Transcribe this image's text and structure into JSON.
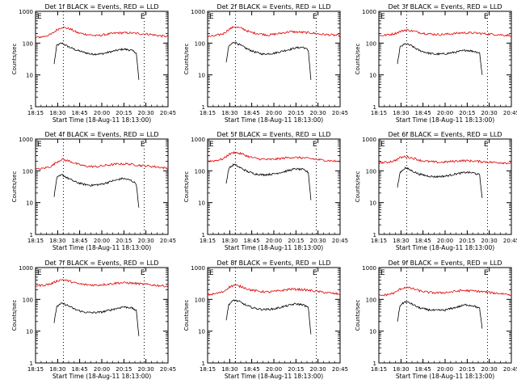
{
  "figure": {
    "ylabel": "Counts/sec",
    "xlabel": "Start Time (18-Aug-11 18:13:00)",
    "xticks": [
      "18:15",
      "18:30",
      "18:45",
      "20:00",
      "20:15",
      "20:30",
      "20:45"
    ],
    "yticks": [
      "1",
      "10",
      "100",
      "1000"
    ],
    "e_marker": "E",
    "colors": {
      "events": "#000000",
      "lld": "#e00000",
      "axes": "#000000"
    }
  },
  "chart_data": [
    {
      "type": "line",
      "title": "Det 1f BLACK = Events, RED = LLD",
      "xlabel": "Start Time (18-Aug-11 18:13:00)",
      "ylabel": "Counts/sec",
      "ylim": [
        1,
        1000
      ],
      "yscale": "log",
      "series": [
        {
          "name": "Events",
          "x": [
            0.14,
            0.16,
            0.2,
            0.24,
            0.3,
            0.36,
            0.42,
            0.5,
            0.58,
            0.66,
            0.72,
            0.76,
            0.78
          ],
          "y": [
            22,
            85,
            100,
            80,
            62,
            52,
            45,
            46,
            55,
            65,
            60,
            50,
            7
          ]
        },
        {
          "name": "LLD",
          "x": [
            0.0,
            0.06,
            0.12,
            0.16,
            0.2,
            0.26,
            0.32,
            0.38,
            0.46,
            0.54,
            0.62,
            0.7,
            0.78,
            0.86,
            0.94,
            1.0
          ],
          "y": [
            150,
            160,
            190,
            260,
            320,
            280,
            210,
            190,
            170,
            190,
            210,
            210,
            200,
            190,
            170,
            160
          ]
        }
      ]
    },
    {
      "type": "line",
      "title": "Det 2f BLACK = Events, RED = LLD",
      "xlabel": "Start Time (18-Aug-11 18:13:00)",
      "ylabel": "Counts/sec",
      "ylim": [
        1,
        1000
      ],
      "yscale": "log",
      "series": [
        {
          "name": "Events",
          "x": [
            0.14,
            0.16,
            0.2,
            0.24,
            0.3,
            0.36,
            0.42,
            0.5,
            0.58,
            0.66,
            0.72,
            0.76,
            0.78
          ],
          "y": [
            25,
            80,
            110,
            90,
            65,
            52,
            45,
            48,
            58,
            70,
            75,
            60,
            7
          ]
        },
        {
          "name": "LLD",
          "x": [
            0.0,
            0.06,
            0.12,
            0.16,
            0.2,
            0.26,
            0.32,
            0.38,
            0.46,
            0.54,
            0.62,
            0.7,
            0.78,
            0.86,
            0.94,
            1.0
          ],
          "y": [
            160,
            170,
            200,
            270,
            330,
            290,
            220,
            200,
            180,
            200,
            230,
            220,
            210,
            190,
            180,
            170
          ]
        }
      ]
    },
    {
      "type": "line",
      "title": "Det 3f BLACK = Events, RED = LLD",
      "xlabel": "Start Time (18-Aug-11 18:13:00)",
      "ylabel": "Counts/sec",
      "ylim": [
        1,
        1000
      ],
      "yscale": "log",
      "series": [
        {
          "name": "Events",
          "x": [
            0.14,
            0.16,
            0.2,
            0.24,
            0.3,
            0.36,
            0.42,
            0.5,
            0.58,
            0.66,
            0.72,
            0.76,
            0.78
          ],
          "y": [
            22,
            75,
            95,
            85,
            60,
            50,
            45,
            46,
            52,
            60,
            55,
            50,
            10
          ]
        },
        {
          "name": "LLD",
          "x": [
            0.0,
            0.06,
            0.12,
            0.16,
            0.2,
            0.26,
            0.32,
            0.38,
            0.46,
            0.54,
            0.62,
            0.7,
            0.78,
            0.86,
            0.94,
            1.0
          ],
          "y": [
            170,
            180,
            200,
            230,
            260,
            240,
            210,
            195,
            185,
            195,
            210,
            210,
            200,
            190,
            180,
            175
          ]
        }
      ]
    },
    {
      "type": "line",
      "title": "Det 4f BLACK = Events, RED = LLD",
      "xlabel": "Start Time (18-Aug-11 18:13:00)",
      "ylabel": "Counts/sec",
      "ylim": [
        1,
        1000
      ],
      "yscale": "log",
      "series": [
        {
          "name": "Events",
          "x": [
            0.14,
            0.16,
            0.2,
            0.24,
            0.3,
            0.36,
            0.42,
            0.5,
            0.58,
            0.66,
            0.72,
            0.76,
            0.78
          ],
          "y": [
            15,
            60,
            75,
            60,
            45,
            38,
            35,
            38,
            48,
            58,
            50,
            40,
            7
          ]
        },
        {
          "name": "LLD",
          "x": [
            0.0,
            0.06,
            0.12,
            0.16,
            0.2,
            0.26,
            0.32,
            0.38,
            0.46,
            0.54,
            0.62,
            0.7,
            0.78,
            0.86,
            0.94,
            1.0
          ],
          "y": [
            110,
            120,
            140,
            190,
            230,
            200,
            160,
            140,
            135,
            150,
            165,
            165,
            150,
            140,
            130,
            120
          ]
        }
      ]
    },
    {
      "type": "line",
      "title": "Det 5f BLACK = Events, RED = LLD",
      "xlabel": "Start Time (18-Aug-11 18:13:00)",
      "ylabel": "Counts/sec",
      "ylim": [
        1,
        1000
      ],
      "yscale": "log",
      "series": [
        {
          "name": "Events",
          "x": [
            0.14,
            0.16,
            0.2,
            0.24,
            0.3,
            0.36,
            0.42,
            0.5,
            0.58,
            0.66,
            0.72,
            0.76,
            0.78
          ],
          "y": [
            40,
            120,
            160,
            130,
            95,
            80,
            75,
            80,
            95,
            115,
            110,
            90,
            12
          ]
        },
        {
          "name": "LLD",
          "x": [
            0.0,
            0.06,
            0.12,
            0.16,
            0.2,
            0.26,
            0.32,
            0.38,
            0.46,
            0.54,
            0.62,
            0.7,
            0.78,
            0.86,
            0.94,
            1.0
          ],
          "y": [
            200,
            210,
            240,
            330,
            380,
            340,
            270,
            240,
            225,
            240,
            265,
            260,
            240,
            220,
            205,
            195
          ]
        }
      ]
    },
    {
      "type": "line",
      "title": "Det 6f BLACK = Events, RED = LLD",
      "xlabel": "Start Time (18-Aug-11 18:13:00)",
      "ylabel": "Counts/sec",
      "ylim": [
        1,
        1000
      ],
      "yscale": "log",
      "series": [
        {
          "name": "Events",
          "x": [
            0.14,
            0.16,
            0.2,
            0.24,
            0.3,
            0.36,
            0.42,
            0.5,
            0.58,
            0.66,
            0.72,
            0.76,
            0.78
          ],
          "y": [
            30,
            90,
            125,
            105,
            80,
            70,
            65,
            68,
            80,
            90,
            85,
            75,
            14
          ]
        },
        {
          "name": "LLD",
          "x": [
            0.0,
            0.06,
            0.12,
            0.16,
            0.2,
            0.26,
            0.32,
            0.38,
            0.46,
            0.54,
            0.62,
            0.7,
            0.78,
            0.86,
            0.94,
            1.0
          ],
          "y": [
            180,
            185,
            210,
            260,
            280,
            250,
            210,
            195,
            185,
            195,
            210,
            205,
            195,
            185,
            180,
            175
          ]
        }
      ]
    },
    {
      "type": "line",
      "title": "Det 7f BLACK = Events, RED = LLD",
      "xlabel": "Start Time (18-Aug-11 18:13:00)",
      "ylabel": "Counts/sec",
      "ylim": [
        1,
        1000
      ],
      "yscale": "log",
      "series": [
        {
          "name": "Events",
          "x": [
            0.14,
            0.16,
            0.2,
            0.24,
            0.3,
            0.36,
            0.42,
            0.5,
            0.58,
            0.66,
            0.72,
            0.76,
            0.78
          ],
          "y": [
            18,
            60,
            75,
            65,
            48,
            40,
            38,
            40,
            48,
            58,
            55,
            45,
            7
          ]
        },
        {
          "name": "LLD",
          "x": [
            0.0,
            0.06,
            0.12,
            0.16,
            0.2,
            0.26,
            0.32,
            0.38,
            0.46,
            0.54,
            0.62,
            0.7,
            0.78,
            0.86,
            0.94,
            1.0
          ],
          "y": [
            270,
            280,
            310,
            380,
            420,
            370,
            310,
            290,
            280,
            300,
            330,
            330,
            310,
            290,
            270,
            260
          ]
        }
      ]
    },
    {
      "type": "line",
      "title": "Det 8f BLACK = Events, RED = LLD",
      "xlabel": "Start Time (18-Aug-11 18:13:00)",
      "ylabel": "Counts/sec",
      "ylim": [
        1,
        1000
      ],
      "yscale": "log",
      "series": [
        {
          "name": "Events",
          "x": [
            0.14,
            0.16,
            0.2,
            0.24,
            0.3,
            0.36,
            0.42,
            0.5,
            0.58,
            0.66,
            0.72,
            0.76,
            0.78
          ],
          "y": [
            22,
            70,
            95,
            85,
            62,
            52,
            48,
            50,
            60,
            72,
            68,
            55,
            8
          ]
        },
        {
          "name": "LLD",
          "x": [
            0.0,
            0.06,
            0.12,
            0.16,
            0.2,
            0.26,
            0.32,
            0.38,
            0.46,
            0.54,
            0.62,
            0.7,
            0.78,
            0.86,
            0.94,
            1.0
          ],
          "y": [
            140,
            150,
            175,
            240,
            280,
            250,
            200,
            180,
            170,
            185,
            210,
            205,
            190,
            170,
            155,
            145
          ]
        }
      ]
    },
    {
      "type": "line",
      "title": "Det 9f BLACK = Events, RED = LLD",
      "xlabel": "Start Time (18-Aug-11 18:13:00)",
      "ylabel": "Counts/sec",
      "ylim": [
        1,
        1000
      ],
      "yscale": "log",
      "series": [
        {
          "name": "Events",
          "x": [
            0.14,
            0.16,
            0.2,
            0.24,
            0.3,
            0.36,
            0.42,
            0.5,
            0.58,
            0.66,
            0.72,
            0.76,
            0.78
          ],
          "y": [
            20,
            65,
            85,
            75,
            55,
            48,
            45,
            46,
            56,
            68,
            62,
            52,
            12
          ]
        },
        {
          "name": "LLD",
          "x": [
            0.0,
            0.06,
            0.12,
            0.16,
            0.2,
            0.26,
            0.32,
            0.38,
            0.46,
            0.54,
            0.62,
            0.7,
            0.78,
            0.86,
            0.94,
            1.0
          ],
          "y": [
            130,
            140,
            160,
            210,
            240,
            215,
            180,
            165,
            160,
            170,
            190,
            185,
            175,
            160,
            150,
            140
          ]
        }
      ]
    }
  ]
}
